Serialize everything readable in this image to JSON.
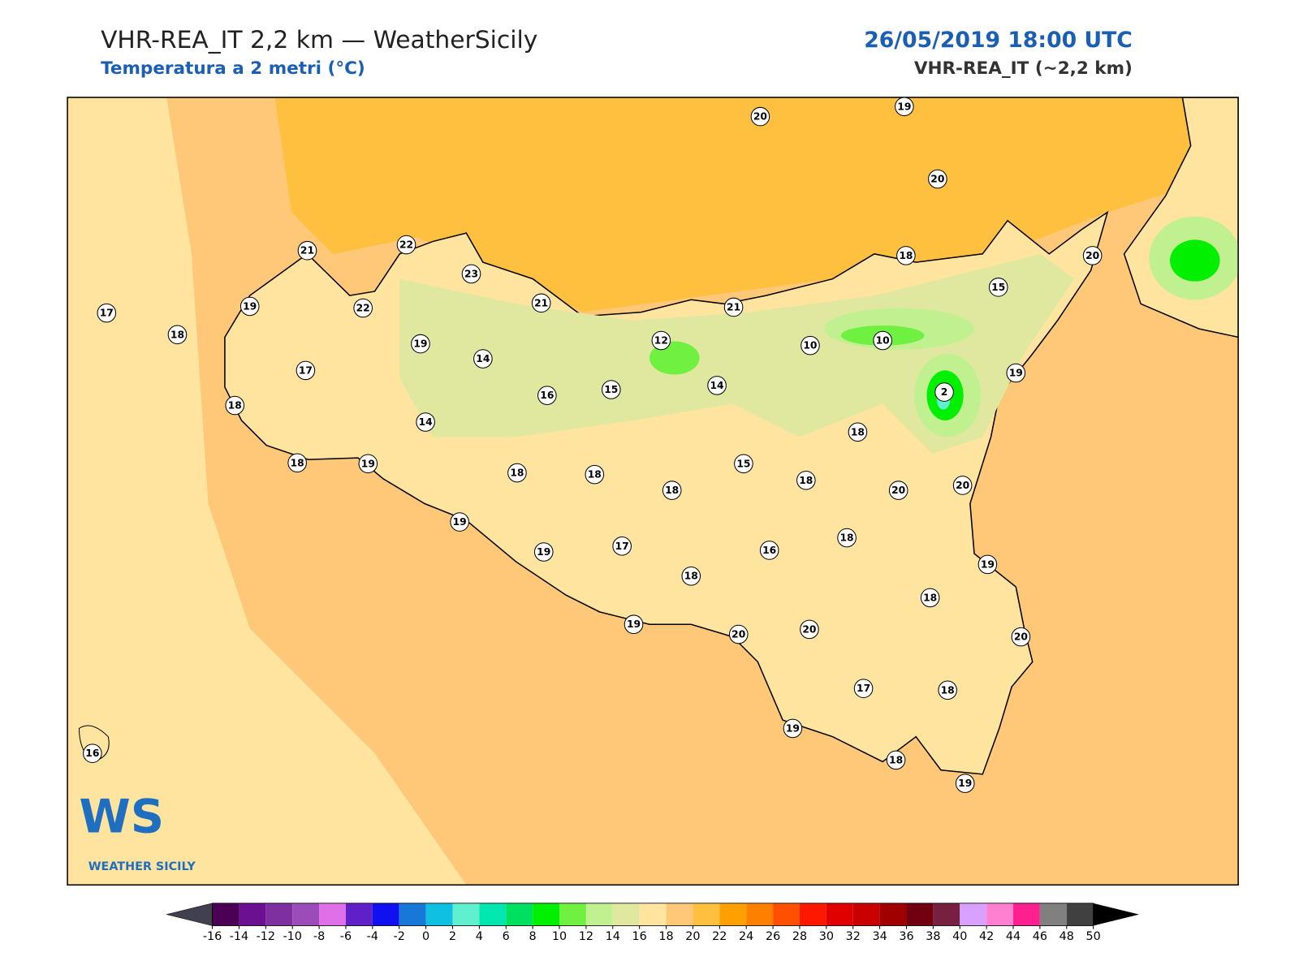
{
  "header": {
    "title": "VHR-REA_IT 2,2 km — WeatherSicily",
    "subtitle": "Temperatura a 2 metri (°C)",
    "datetime": "26/05/2019 18:00 UTC",
    "model": "VHR-REA_IT (~2,2 km)"
  },
  "stations": [
    20,
    19,
    20,
    21,
    22,
    23,
    21,
    21,
    22,
    19,
    17,
    18,
    18,
    20,
    15,
    19,
    14,
    12,
    10,
    10,
    19,
    17,
    16,
    15,
    14,
    2,
    18,
    14,
    18,
    18,
    19,
    15,
    18,
    18,
    18,
    18,
    20,
    20,
    19,
    18,
    19,
    17,
    16,
    19,
    18,
    18,
    19,
    20,
    20,
    20,
    17,
    18,
    19,
    18,
    19,
    16
  ],
  "colorbar": {
    "ticks": [
      -16,
      -14,
      -12,
      -10,
      -8,
      -6,
      -4,
      -2,
      0,
      2,
      4,
      6,
      8,
      10,
      12,
      14,
      16,
      18,
      20,
      22,
      24,
      26,
      28,
      30,
      32,
      34,
      36,
      38,
      40,
      42,
      44,
      46,
      48,
      50
    ],
    "colors": [
      "#4b0055",
      "#6a1090",
      "#7f30a0",
      "#9c4cb8",
      "#e070e8",
      "#6020c8",
      "#1010f0",
      "#1878d8",
      "#10c0e0",
      "#60f0d0",
      "#00e8b0",
      "#00e060",
      "#00f000",
      "#70f040",
      "#c0f090",
      "#e0e8a0",
      "#ffe4a0",
      "#ffc878",
      "#ffc040",
      "#ffa000",
      "#ff8000",
      "#ff5000",
      "#ff1800",
      "#e00000",
      "#c80000",
      "#a00000",
      "#700010",
      "#782040",
      "#d8a0ff",
      "#ff80d0",
      "#ff2090",
      "#808080",
      "#404040"
    ],
    "under": "#404050",
    "over": "#000000"
  },
  "logo": {
    "mark": "WS",
    "name": "WEATHER SICILY"
  }
}
